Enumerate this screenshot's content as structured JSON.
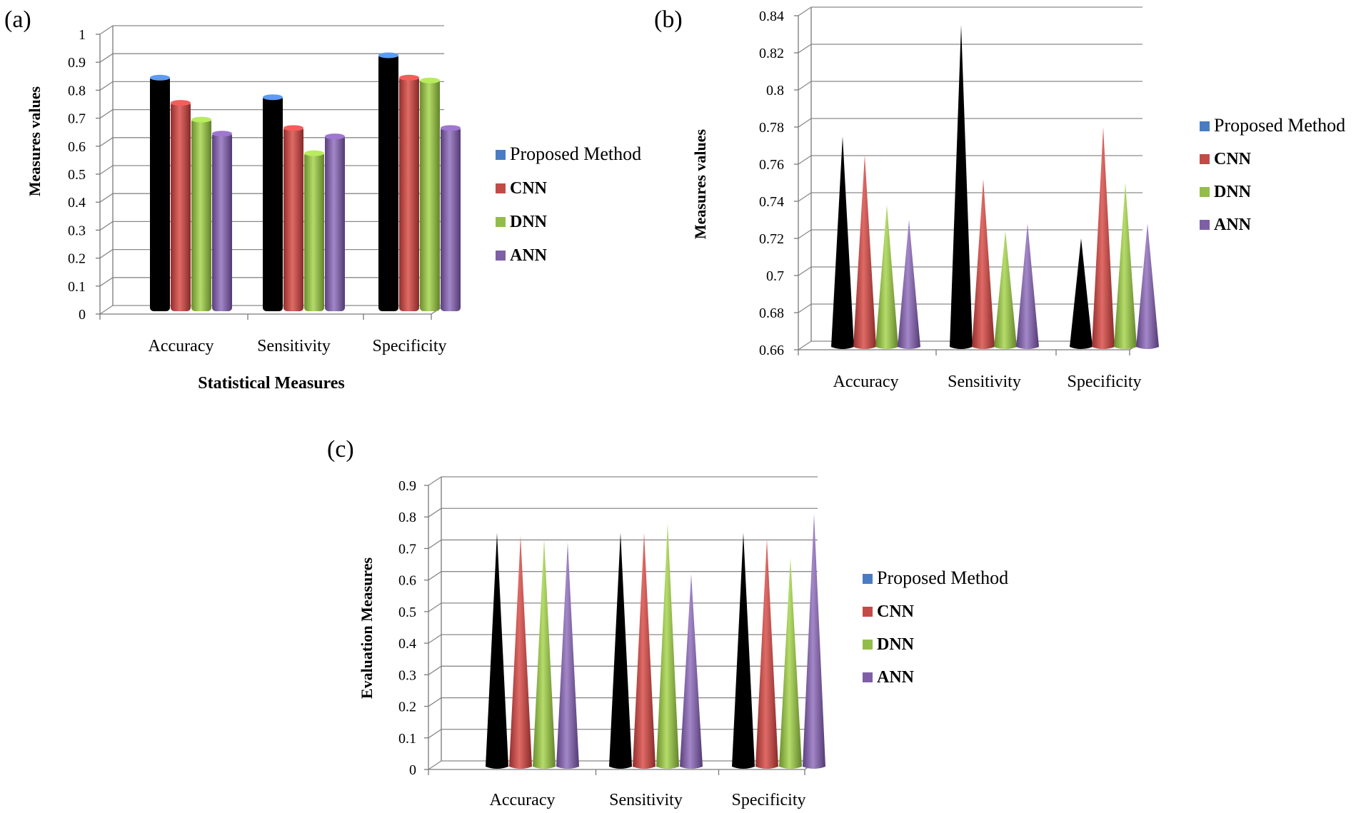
{
  "figure": {
    "panels": [
      {
        "label": "(a)",
        "chart_data": {
          "type": "bar",
          "title": "",
          "xlabel": "Statistical Measures",
          "ylabel": "Measures values",
          "ylim": [
            0,
            1
          ],
          "yticks": [
            "0",
            "0.1",
            "0.2",
            "0.3",
            "0.4",
            "0.5",
            "0.6",
            "0.7",
            "0.8",
            "0.9",
            "1"
          ],
          "categories": [
            "Accuracy",
            "Sensitivity",
            "Specificity"
          ],
          "series": [
            {
              "name": "Proposed Method",
              "values": [
                0.85,
                0.78,
                0.93
              ]
            },
            {
              "name": "CNN",
              "values": [
                0.76,
                0.67,
                0.85
              ]
            },
            {
              "name": "DNN",
              "values": [
                0.7,
                0.58,
                0.84
              ]
            },
            {
              "name": "ANN",
              "values": [
                0.65,
                0.64,
                0.67
              ]
            }
          ],
          "legend_position": "right",
          "grid": true
        }
      },
      {
        "label": "(b)",
        "chart_data": {
          "type": "bar",
          "shape": "cone",
          "title": "",
          "xlabel": "",
          "ylabel": "Measures values",
          "ylim": [
            0.66,
            0.84
          ],
          "yticks": [
            "0.66",
            "0.68",
            "0.7",
            "0.72",
            "0.74",
            "0.76",
            "0.78",
            "0.8",
            "0.82",
            "0.84"
          ],
          "categories": [
            "Accuracy",
            "Sensitivity",
            "Specificity"
          ],
          "series": [
            {
              "name": "Proposed Method",
              "values": [
                0.775,
                0.835,
                0.72
              ]
            },
            {
              "name": "CNN",
              "values": [
                0.765,
                0.752,
                0.78
              ]
            },
            {
              "name": "DNN",
              "values": [
                0.738,
                0.724,
                0.75
              ]
            },
            {
              "name": "ANN",
              "values": [
                0.73,
                0.728,
                0.728
              ]
            }
          ],
          "legend_position": "right",
          "grid": true
        }
      },
      {
        "label": "(c)",
        "chart_data": {
          "type": "bar",
          "shape": "cone",
          "title": "",
          "xlabel": "",
          "ylabel": "Evaluation Measures",
          "ylim": [
            0,
            0.9
          ],
          "yticks": [
            "0",
            "0.1",
            "0.2",
            "0.3",
            "0.4",
            "0.5",
            "0.6",
            "0.7",
            "0.8",
            "0.9"
          ],
          "categories": [
            "Accuracy",
            "Sensitivity",
            "Specificity"
          ],
          "series": [
            {
              "name": "Proposed Method",
              "values": [
                0.75,
                0.75,
                0.75
              ]
            },
            {
              "name": "CNN",
              "values": [
                0.74,
                0.75,
                0.73
              ]
            },
            {
              "name": "DNN",
              "values": [
                0.73,
                0.78,
                0.67
              ]
            },
            {
              "name": "ANN",
              "values": [
                0.72,
                0.62,
                0.81
              ]
            }
          ],
          "legend_position": "right",
          "grid": true
        }
      }
    ],
    "colors": {
      "Proposed Method": "#4a7cc4",
      "CNN": "#c44a48",
      "DNN": "#93bd4a",
      "ANN": "#7e5fa6"
    },
    "icons": {
      "legend_marker": "square-marker-icon"
    }
  }
}
